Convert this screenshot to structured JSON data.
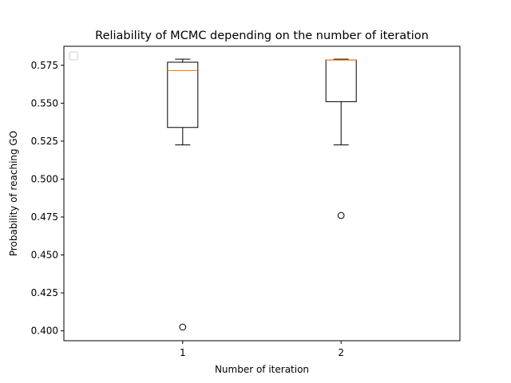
{
  "chart_data": {
    "type": "box",
    "title": "Reliability of MCMC depending on the number of iteration",
    "xlabel": "Number of iteration",
    "ylabel": "Probability of reaching GO",
    "categories": [
      "1",
      "2"
    ],
    "ylim": [
      0.3935,
      0.5875
    ],
    "yticks": [
      0.4,
      0.425,
      0.45,
      0.475,
      0.5,
      0.525,
      0.55,
      0.575
    ],
    "ytick_labels": [
      "0.400",
      "0.425",
      "0.450",
      "0.475",
      "0.500",
      "0.525",
      "0.550",
      "0.575"
    ],
    "legend": "upper-left, empty",
    "grid": false,
    "boxes": [
      {
        "category": "1",
        "whisker_low": 0.5225,
        "q1": 0.534,
        "median": 0.5715,
        "q3": 0.577,
        "whisker_high": 0.579,
        "outliers": [
          0.4025
        ]
      },
      {
        "category": "2",
        "whisker_low": 0.5225,
        "q1": 0.551,
        "median": 0.5785,
        "q3": 0.5785,
        "whisker_high": 0.579,
        "outliers": [
          0.476
        ]
      }
    ],
    "colors": {
      "box": "#000000",
      "median": "#ff7f0e",
      "legend_border": "#cccccc"
    }
  }
}
